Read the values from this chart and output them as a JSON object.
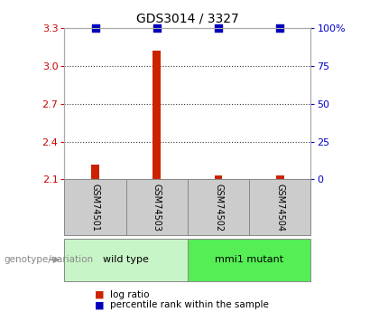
{
  "title": "GDS3014 / 3327",
  "samples": [
    "GSM74501",
    "GSM74503",
    "GSM74502",
    "GSM74504"
  ],
  "log_ratios": [
    2.22,
    3.12,
    2.13,
    2.13
  ],
  "percentile_ranks": [
    100,
    100,
    100,
    100
  ],
  "ylim_left": [
    2.1,
    3.3
  ],
  "ylim_right": [
    0,
    100
  ],
  "yticks_left": [
    2.1,
    2.4,
    2.7,
    3.0,
    3.3
  ],
  "yticks_right": [
    0,
    25,
    50,
    75,
    100
  ],
  "ytick_labels_right": [
    "0",
    "25",
    "50",
    "75",
    "100%"
  ],
  "dotted_lines": [
    3.0,
    2.7,
    2.4
  ],
  "groups": [
    {
      "label": "wild type",
      "indices": [
        0,
        1
      ],
      "color": "#c8f5c8"
    },
    {
      "label": "mmi1 mutant",
      "indices": [
        2,
        3
      ],
      "color": "#55ee55"
    }
  ],
  "bar_color": "#cc2200",
  "square_color": "#0000bb",
  "axis_left_color": "#cc0000",
  "axis_right_color": "#0000cc",
  "sample_box_color": "#cccccc",
  "sample_box_border": "#888888",
  "legend_bar_label": "log ratio",
  "legend_square_label": "percentile rank within the sample",
  "genotype_label": "genotype/variation",
  "background_color": "#ffffff",
  "plot_area_color": "#ffffff",
  "grid_line_color": "#333333",
  "bar_width": 0.13,
  "square_size": 28
}
